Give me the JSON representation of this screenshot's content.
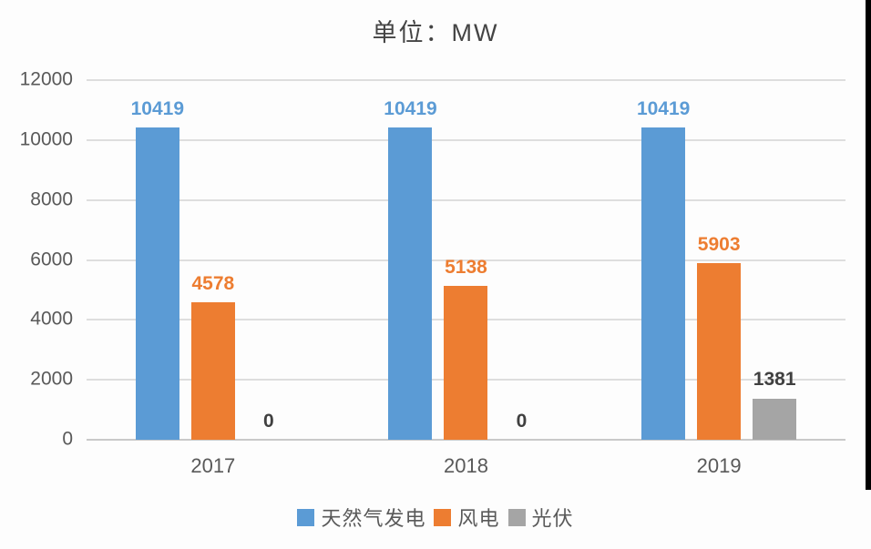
{
  "chart_data": {
    "type": "bar",
    "title": "单位：MW",
    "categories": [
      "2017",
      "2018",
      "2019"
    ],
    "series": [
      {
        "name": "天然气发电",
        "color": "#5B9BD5",
        "label_color": "#5B9BD5",
        "values": [
          10419,
          10419,
          10419
        ]
      },
      {
        "name": "风电",
        "color": "#ED7D31",
        "label_color": "#ED7D31",
        "values": [
          4578,
          5138,
          5903
        ]
      },
      {
        "name": "光伏",
        "color": "#A5A5A5",
        "label_color": "#404040",
        "values": [
          0,
          0,
          1381
        ]
      }
    ],
    "ylim": [
      0,
      12000
    ],
    "yticks": [
      0,
      2000,
      4000,
      6000,
      8000,
      10000,
      12000
    ],
    "grid": true,
    "legend_position": "bottom"
  },
  "colors": {
    "gridline": "#dedede",
    "axis_line": "#c9c9c9",
    "tick_text": "#595959",
    "title_text": "#444444",
    "background": "#fdfdfd"
  }
}
